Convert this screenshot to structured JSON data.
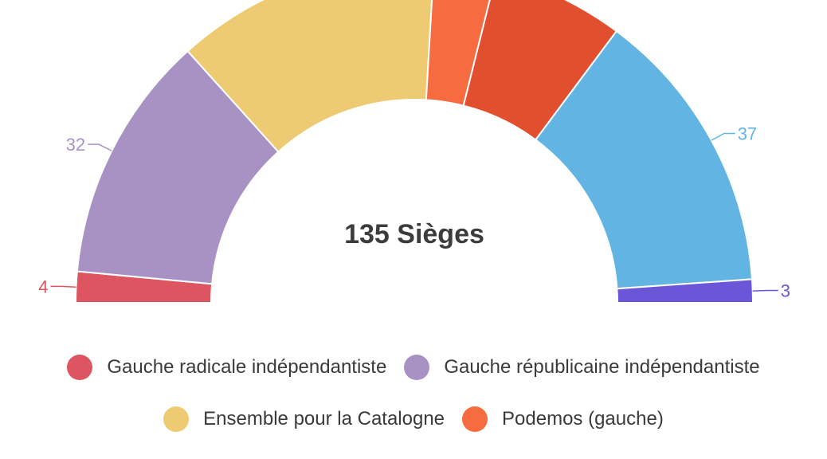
{
  "chart_data": {
    "type": "pie",
    "subtype": "parliament-half-donut",
    "total_label": "135 Sièges",
    "total": 135,
    "series": [
      {
        "name": "Gauche radicale indépendantiste",
        "value": 4,
        "color": "#dc5560",
        "label": "4"
      },
      {
        "name": "Gauche républicaine indépendantiste",
        "value": 32,
        "color": "#a892c4",
        "label": "32"
      },
      {
        "name": "Ensemble pour la Catalogne",
        "value": 34,
        "color": "#eeca72",
        "label": ""
      },
      {
        "name": "Podemos (gauche)",
        "value": 8,
        "color": "#f66c40",
        "label": ""
      },
      {
        "name": "",
        "value": 17,
        "color": "#e24f2e",
        "label": ""
      },
      {
        "name": "",
        "value": 37,
        "color": "#62b5e2",
        "label": "37"
      },
      {
        "name": "",
        "value": 3,
        "color": "#6a56d6",
        "label": "3"
      }
    ]
  },
  "legend": [
    {
      "label": "Gauche radicale indépendantiste",
      "color": "#dc5560"
    },
    {
      "label": "Gauche républicaine indépendantiste",
      "color": "#a892c4"
    },
    {
      "label": "Ensemble pour la Catalogne",
      "color": "#eeca72"
    },
    {
      "label": "Podemos (gauche)",
      "color": "#f66c40"
    }
  ]
}
